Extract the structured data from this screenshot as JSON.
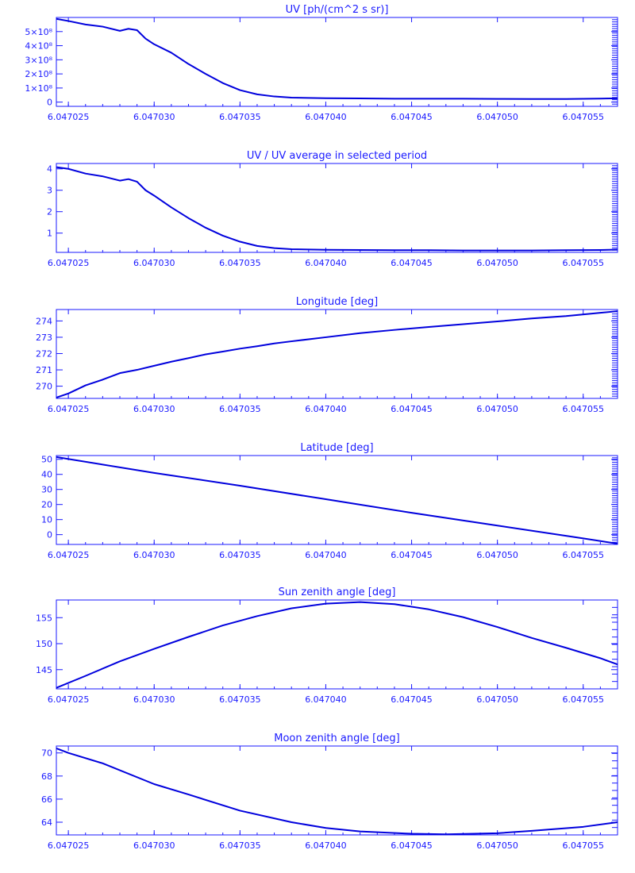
{
  "chart_data": [
    {
      "type": "line",
      "title": "UV [ph/(cm^2 s sr)]",
      "xlim": [
        6.0470243,
        6.047057
      ],
      "ylim": [
        -30000000.0,
        600000000.0
      ],
      "x_ticks": [
        6.047025,
        6.04703,
        6.047035,
        6.04704,
        6.047045,
        6.04705,
        6.047055
      ],
      "x_tick_labels": [
        "6.047025",
        "6.047030",
        "6.047035",
        "6.047040",
        "6.047045",
        "6.047050",
        "6.047055"
      ],
      "y_ticks": [
        0,
        100000000.0,
        200000000.0,
        300000000.0,
        400000000.0,
        500000000.0
      ],
      "y_tick_labels": [
        "0",
        "1×10⁸",
        "2×10⁸",
        "3×10⁸",
        "4×10⁸",
        "5×10⁸"
      ],
      "series": [
        {
          "x": [
            6.0470243,
            6.047025,
            6.047026,
            6.047027,
            6.047028,
            6.0470285,
            6.047029,
            6.0470295,
            6.04703,
            6.047031,
            6.047032,
            6.047033,
            6.047034,
            6.047035,
            6.047036,
            6.047037,
            6.047038,
            6.04704,
            6.047042,
            6.047044,
            6.047046,
            6.047048,
            6.04705,
            6.047052,
            6.047054,
            6.047056,
            6.047057
          ],
          "y": [
            590000000.0,
            575000000.0,
            550000000.0,
            535000000.0,
            505000000.0,
            520000000.0,
            510000000.0,
            450000000.0,
            410000000.0,
            350000000.0,
            270000000.0,
            200000000.0,
            135000000.0,
            85000000.0,
            55000000.0,
            40000000.0,
            32000000.0,
            28000000.0,
            26000000.0,
            24000000.0,
            24000000.0,
            24000000.0,
            23000000.0,
            22000000.0,
            22000000.0,
            25000000.0,
            27000000.0
          ]
        }
      ]
    },
    {
      "type": "line",
      "title": "UV / UV average in selected period",
      "xlim": [
        6.0470243,
        6.047057
      ],
      "ylim": [
        0.1,
        4.25
      ],
      "x_ticks": [
        6.047025,
        6.04703,
        6.047035,
        6.04704,
        6.047045,
        6.04705,
        6.047055
      ],
      "x_tick_labels": [
        "6.047025",
        "6.047030",
        "6.047035",
        "6.047040",
        "6.047045",
        "6.047050",
        "6.047055"
      ],
      "y_ticks": [
        1,
        2,
        3,
        4
      ],
      "y_tick_labels": [
        "1",
        "2",
        "3",
        "4"
      ],
      "series": [
        {
          "x": [
            6.0470243,
            6.047025,
            6.047026,
            6.047027,
            6.047028,
            6.0470285,
            6.047029,
            6.0470295,
            6.04703,
            6.047031,
            6.047032,
            6.047033,
            6.047034,
            6.047035,
            6.047036,
            6.047037,
            6.047038,
            6.04704,
            6.047042,
            6.047044,
            6.047046,
            6.047048,
            6.04705,
            6.047052,
            6.047054,
            6.047056,
            6.047057
          ],
          "y": [
            4.08,
            4.0,
            3.78,
            3.65,
            3.45,
            3.52,
            3.4,
            3.0,
            2.75,
            2.2,
            1.7,
            1.25,
            0.88,
            0.6,
            0.4,
            0.3,
            0.25,
            0.22,
            0.21,
            0.2,
            0.2,
            0.19,
            0.19,
            0.19,
            0.2,
            0.21,
            0.23
          ]
        }
      ]
    },
    {
      "type": "line",
      "title": "Longitude [deg]",
      "xlim": [
        6.0470243,
        6.047057
      ],
      "ylim": [
        269.25,
        274.7
      ],
      "x_ticks": [
        6.047025,
        6.04703,
        6.047035,
        6.04704,
        6.047045,
        6.04705,
        6.047055
      ],
      "x_tick_labels": [
        "6.047025",
        "6.047030",
        "6.047035",
        "6.047040",
        "6.047045",
        "6.047050",
        "6.047055"
      ],
      "y_ticks": [
        270,
        271,
        272,
        273,
        274
      ],
      "y_tick_labels": [
        "270",
        "271",
        "272",
        "273",
        "274"
      ],
      "series": [
        {
          "x": [
            6.0470243,
            6.047025,
            6.047026,
            6.047027,
            6.047028,
            6.047029,
            6.04703,
            6.047031,
            6.047032,
            6.047033,
            6.047034,
            6.047035,
            6.047036,
            6.047037,
            6.047038,
            6.04704,
            6.047042,
            6.047044,
            6.047046,
            6.047048,
            6.04705,
            6.047052,
            6.047054,
            6.047056,
            6.047057
          ],
          "y": [
            269.3,
            269.55,
            270.05,
            270.4,
            270.8,
            271.0,
            271.25,
            271.5,
            271.72,
            271.95,
            272.12,
            272.3,
            272.45,
            272.62,
            272.75,
            273.0,
            273.25,
            273.45,
            273.63,
            273.8,
            273.97,
            274.15,
            274.3,
            274.5,
            274.6
          ]
        }
      ]
    },
    {
      "type": "line",
      "title": "Latitude [deg]",
      "xlim": [
        6.0470243,
        6.047057
      ],
      "ylim": [
        -6.5,
        52.5
      ],
      "x_ticks": [
        6.047025,
        6.04703,
        6.047035,
        6.04704,
        6.047045,
        6.04705,
        6.047055
      ],
      "x_tick_labels": [
        "6.047025",
        "6.047030",
        "6.047035",
        "6.047040",
        "6.047045",
        "6.047050",
        "6.047055"
      ],
      "y_ticks": [
        0,
        10,
        20,
        30,
        40,
        50
      ],
      "y_tick_labels": [
        "0",
        "10",
        "20",
        "30",
        "40",
        "50"
      ],
      "series": [
        {
          "x": [
            6.0470243,
            6.04703,
            6.047035,
            6.04704,
            6.047045,
            6.04705,
            6.047055,
            6.047057
          ],
          "y": [
            51.5,
            41.0,
            32.5,
            23.5,
            14.5,
            6.0,
            -2.5,
            -6.0
          ]
        }
      ]
    },
    {
      "type": "line",
      "title": "Sun zenith angle [deg]",
      "xlim": [
        6.0470243,
        6.047057
      ],
      "ylim": [
        141.3,
        158.4
      ],
      "x_ticks": [
        6.047025,
        6.04703,
        6.047035,
        6.04704,
        6.047045,
        6.04705,
        6.047055
      ],
      "x_tick_labels": [
        "6.047025",
        "6.047030",
        "6.047035",
        "6.047040",
        "6.047045",
        "6.047050",
        "6.047055"
      ],
      "y_ticks": [
        145,
        150,
        155
      ],
      "y_tick_labels": [
        "145",
        "150",
        "155"
      ],
      "series": [
        {
          "x": [
            6.0470243,
            6.047026,
            6.047028,
            6.04703,
            6.047032,
            6.047034,
            6.047036,
            6.047038,
            6.04704,
            6.047042,
            6.047044,
            6.047046,
            6.047048,
            6.04705,
            6.047052,
            6.047054,
            6.047056,
            6.047057
          ],
          "y": [
            141.5,
            143.8,
            146.6,
            149.0,
            151.3,
            153.5,
            155.3,
            156.8,
            157.7,
            158.0,
            157.6,
            156.6,
            155.1,
            153.2,
            151.1,
            149.2,
            147.2,
            146.0
          ]
        }
      ]
    },
    {
      "type": "line",
      "title": "Moon zenith angle [deg]",
      "xlim": [
        6.0470243,
        6.047057
      ],
      "ylim": [
        62.9,
        70.6
      ],
      "x_ticks": [
        6.047025,
        6.04703,
        6.047035,
        6.04704,
        6.047045,
        6.04705,
        6.047055
      ],
      "x_tick_labels": [
        "6.047025",
        "6.047030",
        "6.047035",
        "6.047040",
        "6.047045",
        "6.047050",
        "6.047055"
      ],
      "y_ticks": [
        64,
        66,
        68,
        70
      ],
      "y_tick_labels": [
        "64",
        "66",
        "68",
        "70"
      ],
      "series": [
        {
          "x": [
            6.0470243,
            6.047025,
            6.047027,
            6.04703,
            6.047032,
            6.047035,
            6.047038,
            6.04704,
            6.047042,
            6.047045,
            6.047047,
            6.04705,
            6.047052,
            6.047055,
            6.047057
          ],
          "y": [
            70.4,
            70.0,
            69.1,
            67.3,
            66.4,
            65.0,
            64.0,
            63.5,
            63.2,
            63.0,
            62.95,
            63.05,
            63.25,
            63.6,
            64.0
          ]
        }
      ]
    }
  ]
}
